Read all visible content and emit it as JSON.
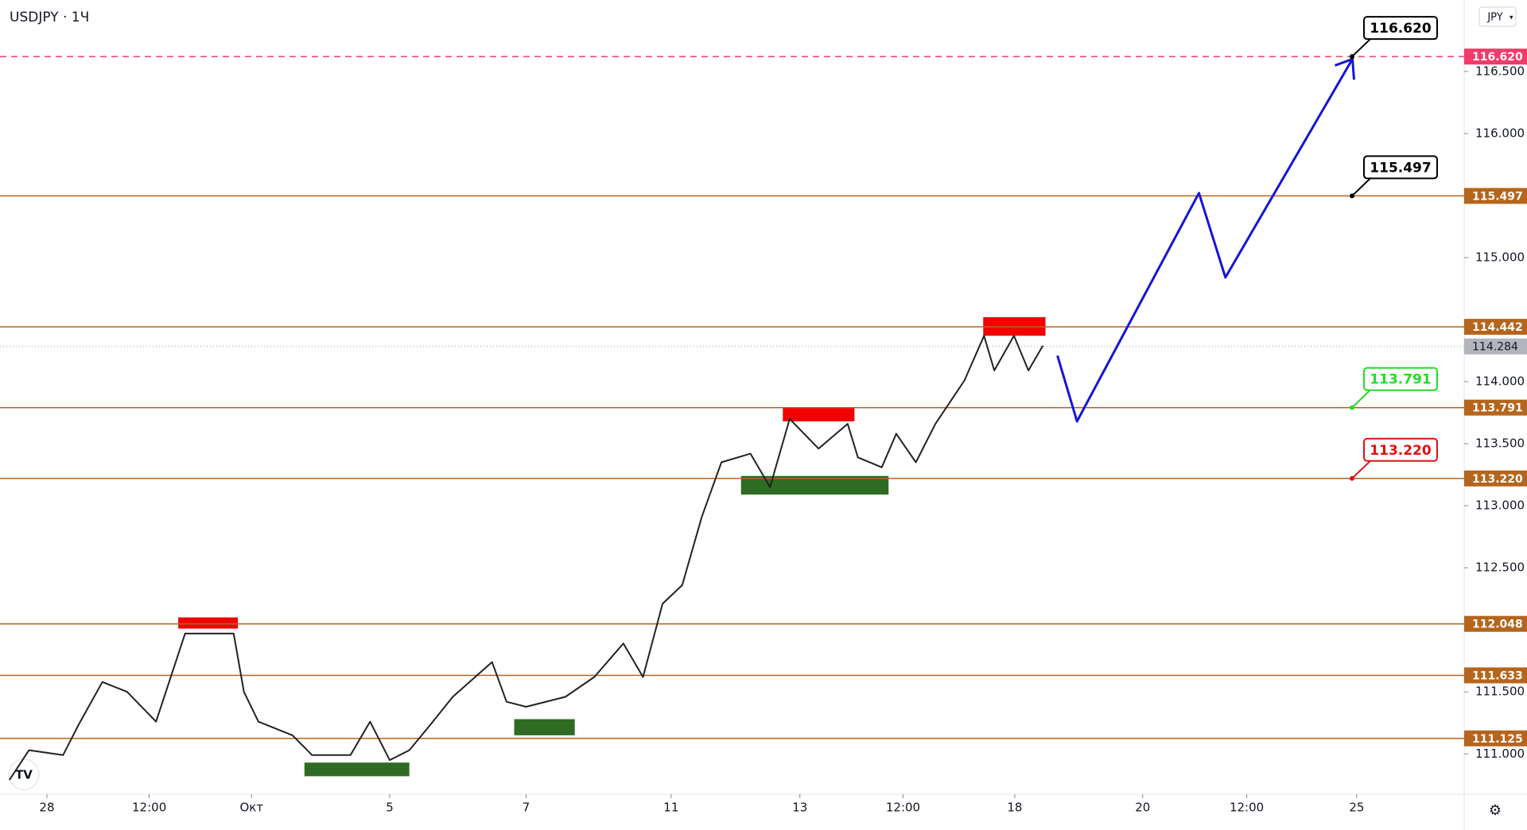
{
  "chart_data": {
    "type": "line",
    "title": "USDJPY · 1Ч",
    "currency": "JPY",
    "x": [
      1.1,
      3.4,
      7.4,
      9.1,
      12,
      14.9,
      18.3,
      20.6,
      21.7,
      27.4,
      28.6,
      30.3,
      34.3,
      36.6,
      41.1,
      43.4,
      45.7,
      48,
      50.3,
      53.1,
      57.7,
      59.4,
      61.7,
      66.3,
      69.7,
      73.1,
      75.4,
      77.7,
      80,
      82.3,
      84.6,
      88,
      90.3,
      92.6,
      96,
      99.4,
      100.6,
      103.4,
      105.1,
      107.4,
      109.7,
      113.1,
      115.4,
      116.6,
      118.9,
      120.6,
      122.3
    ],
    "values": [
      110.79,
      111.03,
      110.99,
      111.22,
      111.58,
      111.5,
      111.26,
      111.74,
      111.97,
      111.97,
      111.5,
      111.26,
      111.15,
      110.99,
      110.99,
      111.26,
      110.95,
      111.03,
      111.22,
      111.46,
      111.74,
      111.42,
      111.38,
      111.46,
      111.62,
      111.89,
      111.62,
      112.21,
      112.36,
      112.91,
      113.35,
      113.42,
      113.15,
      113.7,
      113.46,
      113.66,
      113.39,
      113.31,
      113.58,
      113.35,
      113.66,
      114.01,
      114.37,
      114.09,
      114.37,
      114.09,
      114.29
    ],
    "color": "#222222",
    "projection": {
      "x": [
        124,
        126.3,
        140.6,
        143.7,
        158.6
      ],
      "values": [
        114.21,
        113.68,
        115.52,
        114.84,
        116.6
      ],
      "color": "#1515d6"
    },
    "zones": [
      {
        "x": [
          20.9,
          27.9
        ],
        "values": [
          112.1,
          112.01
        ],
        "color": "#f20000"
      },
      {
        "x": [
          35.7,
          48
        ],
        "values": [
          110.93,
          110.82
        ],
        "color": "#2e6b23"
      },
      {
        "x": [
          60.3,
          67.4
        ],
        "values": [
          111.28,
          111.15
        ],
        "color": "#2e6b23"
      },
      {
        "x": [
          91.8,
          100.2
        ],
        "values": [
          113.79,
          113.68
        ],
        "color": "#f20000"
      },
      {
        "x": [
          86.9,
          104.2
        ],
        "values": [
          113.24,
          113.09
        ],
        "color": "#2e6b23"
      },
      {
        "x": [
          115.3,
          122.6
        ],
        "values": [
          114.52,
          114.37
        ],
        "color": "#f20000"
      }
    ],
    "levels": [
      {
        "value": 116.62,
        "label": "116.620",
        "color": "#f23a6a",
        "dashed": true
      },
      {
        "value": 115.497,
        "label": "115.497",
        "color": "#b5651d"
      },
      {
        "value": 114.442,
        "label": "114.442",
        "color": "#b5651d"
      },
      {
        "value": 113.791,
        "label": "113.791",
        "color": "#b5651d"
      },
      {
        "value": 113.22,
        "label": "113.220",
        "color": "#b5651d"
      },
      {
        "value": 112.048,
        "label": "112.048",
        "color": "#b5651d"
      },
      {
        "value": 111.633,
        "label": "111.633",
        "color": "#b5651d"
      },
      {
        "value": 111.125,
        "label": "111.125",
        "color": "#b5651d"
      }
    ],
    "last_price": {
      "value": 114.284,
      "label": "114.284"
    },
    "callouts": [
      {
        "value": 116.62,
        "label": "116.620",
        "color": "#000000"
      },
      {
        "value": 115.497,
        "label": "115.497",
        "color": "#000000"
      },
      {
        "value": 113.791,
        "label": "113.791",
        "color": "#22dd22"
      },
      {
        "value": 113.22,
        "label": "113.220",
        "color": "#e01010"
      }
    ],
    "xlim": [
      0,
      171.7
    ],
    "ylim": [
      110.675,
      117.076
    ],
    "yticks": [
      {
        "value": 111,
        "label": "111.000"
      },
      {
        "value": 111.5,
        "label": "111.500"
      },
      {
        "value": 112.5,
        "label": "112.500"
      },
      {
        "value": 113,
        "label": "113.000"
      },
      {
        "value": 113.5,
        "label": "113.500"
      },
      {
        "value": 114,
        "label": "114.000"
      },
      {
        "value": 115,
        "label": "115.000"
      },
      {
        "value": 116,
        "label": "116.000"
      },
      {
        "value": 116.5,
        "label": "116.500"
      }
    ],
    "xticks": [
      {
        "value": 5.5,
        "label": "28"
      },
      {
        "value": 17.5,
        "label": "12:00"
      },
      {
        "value": 29.5,
        "label": "Окт"
      },
      {
        "value": 45.7,
        "label": "5"
      },
      {
        "value": 61.7,
        "label": "7"
      },
      {
        "value": 78.7,
        "label": "11"
      },
      {
        "value": 93.8,
        "label": "13"
      },
      {
        "value": 105.9,
        "label": "12:00"
      },
      {
        "value": 119,
        "label": "18"
      },
      {
        "value": 134,
        "label": "20"
      },
      {
        "value": 146.2,
        "label": "12:00"
      },
      {
        "value": 159.1,
        "label": "25"
      }
    ]
  }
}
